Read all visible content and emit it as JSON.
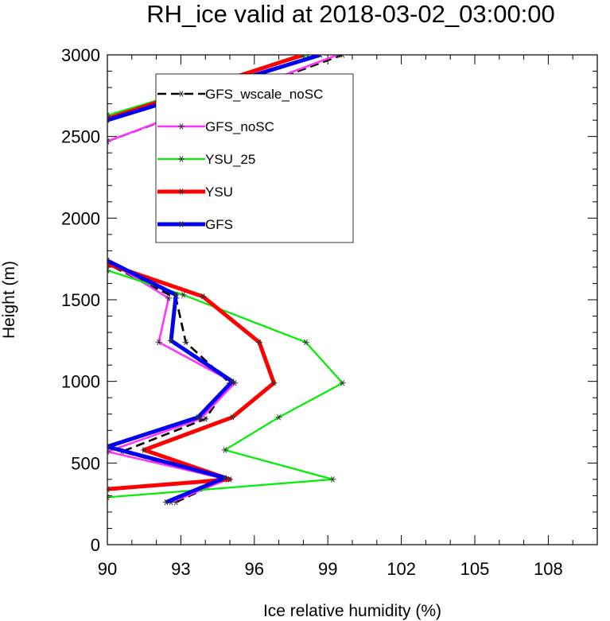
{
  "chart_data": {
    "type": "line",
    "title": "RH_ice valid at 2018-03-02_03:00:00",
    "xlabel": "Ice relative humidity (%)",
    "ylabel": "Height (m)",
    "xlim": [
      90,
      110
    ],
    "ylim": [
      0,
      3000
    ],
    "xticks": [
      90,
      93,
      96,
      99,
      102,
      105,
      108
    ],
    "yticks": [
      0,
      500,
      1000,
      1500,
      2000,
      2500,
      3000
    ],
    "legend_position": "top-left",
    "grid": false,
    "series": [
      {
        "name": "GFS_wscale_noSC",
        "color": "#000000",
        "dash": "dashed",
        "segments": [
          [
            [
              92.8,
              260
            ],
            [
              94.8,
              400
            ],
            [
              90.6,
              570
            ],
            [
              94.0,
              770
            ],
            [
              95.0,
              990
            ],
            [
              93.2,
              1240
            ],
            [
              92.8,
              1510
            ],
            [
              90.0,
              1720
            ]
          ],
          [
            [
              90.0,
              2470
            ],
            [
              99.6,
              3000
            ]
          ]
        ]
      },
      {
        "name": "GFS_noSC",
        "color": "#ff33ff",
        "dash": "solid",
        "segments": [
          [
            [
              92.6,
              260
            ],
            [
              94.9,
              400
            ],
            [
              90.0,
              570
            ],
            [
              93.8,
              770
            ],
            [
              95.2,
              990
            ],
            [
              92.1,
              1240
            ],
            [
              92.5,
              1510
            ],
            [
              90.0,
              1740
            ]
          ],
          [
            [
              90.0,
              2470
            ],
            [
              99.4,
              3000
            ]
          ]
        ]
      },
      {
        "name": "YSU_25",
        "color": "#00ee00",
        "dash": "solid",
        "segments": [
          [
            [
              90.0,
              290
            ],
            [
              99.2,
              400
            ],
            [
              94.8,
              580
            ],
            [
              97.0,
              780
            ],
            [
              99.6,
              990
            ],
            [
              98.1,
              1240
            ],
            [
              93.1,
              1530
            ],
            [
              90.0,
              1680
            ]
          ],
          [
            [
              90.0,
              2630
            ],
            [
              98.2,
              3000
            ]
          ]
        ]
      },
      {
        "name": "YSU",
        "color": "#ff0000",
        "dash": "solid",
        "segments": [
          [
            [
              90.0,
              340
            ],
            [
              95.0,
              400
            ],
            [
              91.5,
              580
            ],
            [
              95.1,
              780
            ],
            [
              96.8,
              990
            ],
            [
              96.2,
              1240
            ],
            [
              93.9,
              1520
            ],
            [
              90.0,
              1720
            ]
          ],
          [
            [
              90.0,
              2610
            ],
            [
              98.0,
              3000
            ]
          ]
        ]
      },
      {
        "name": "GFS",
        "color": "#0000ee",
        "dash": "solid",
        "segments": [
          [
            [
              92.4,
              260
            ],
            [
              94.8,
              410
            ],
            [
              90.0,
              600
            ],
            [
              93.7,
              780
            ],
            [
              95.1,
              1000
            ],
            [
              92.6,
              1250
            ],
            [
              92.8,
              1530
            ],
            [
              90.0,
              1740
            ]
          ],
          [
            [
              90.0,
              2600
            ],
            [
              98.7,
              3000
            ]
          ]
        ]
      }
    ]
  }
}
